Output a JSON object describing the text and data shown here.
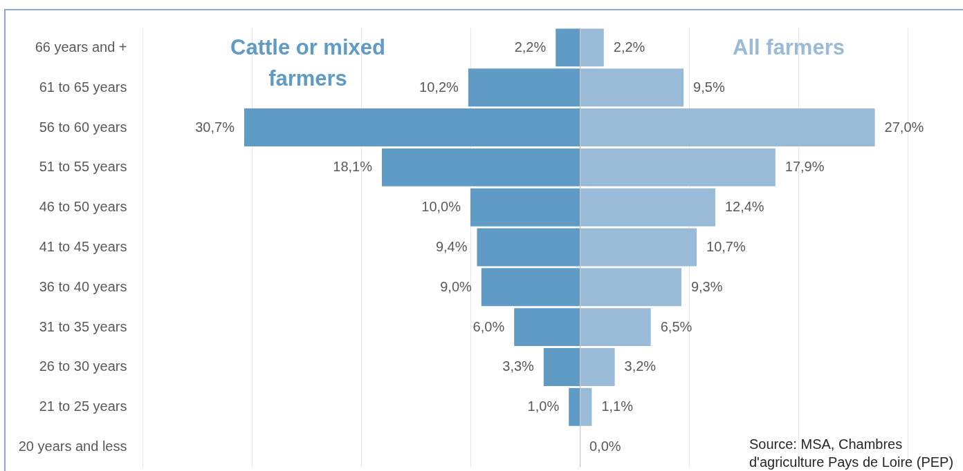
{
  "chart_data": [
    {
      "type": "bar",
      "orientation": "horizontal",
      "categories": [
        "66 years and +",
        "61 to 65 years",
        "56 to 60 years",
        "51 to 55 years",
        "46 to 50 years",
        "41 to 45 years",
        "36 to 40 years",
        "31 to 35 years",
        "26 to 30 years",
        "21 to 25 years",
        "20 years and less"
      ],
      "series": [
        {
          "name": "Cattle or mixed farmers",
          "color": "#5f9bc5",
          "values": [
            2.2,
            10.2,
            30.7,
            18.1,
            10.0,
            9.4,
            9.0,
            6.0,
            3.3,
            1.0,
            null
          ],
          "value_labels": [
            "2,2%",
            "10,2%",
            "30,7%",
            "18,1%",
            "10,0%",
            "9,4%",
            "9,0%",
            "6,0%",
            "3,3%",
            "1,0%",
            null
          ]
        }
      ],
      "xlim": [
        40,
        0
      ],
      "xticks": [
        {
          "value": 40,
          "label": null
        },
        {
          "value": 30,
          "label": null
        },
        {
          "value": 20,
          "label": null
        },
        {
          "value": 10,
          "label": null
        }
      ],
      "grid": "x",
      "tick_labels": "y"
    },
    {
      "type": "bar",
      "orientation": "horizontal",
      "categories": [
        null,
        null,
        null,
        null,
        null,
        null,
        null,
        null,
        null,
        null,
        null
      ],
      "series": [
        {
          "name": "All farmers",
          "color": "#99bbd7",
          "values": [
            2.2,
            9.5,
            27.0,
            17.9,
            12.4,
            10.7,
            9.3,
            6.5,
            3.2,
            1.1,
            0.0
          ],
          "value_labels": [
            "2,2%",
            "9,5%",
            "27,0%",
            "17,9%",
            "12,4%",
            "10,7%",
            "9,3%",
            "6,5%",
            "3,2%",
            "1,1%",
            "0,0%"
          ]
        }
      ],
      "xlim": [
        0,
        30
      ],
      "xticks": [
        {
          "value": 0,
          "label": null
        },
        {
          "value": 10,
          "label": null
        },
        {
          "value": 20,
          "label": null
        },
        {
          "value": 30,
          "label": null
        }
      ],
      "grid": "x",
      "tick_labels": false,
      "annotations": [
        "Source: MSA, Chambres d'agriculture Pays de Loire (PEP)"
      ]
    }
  ]
}
